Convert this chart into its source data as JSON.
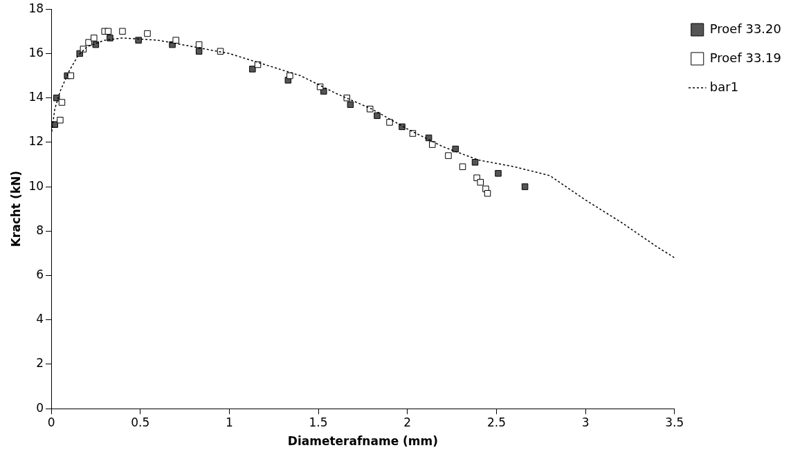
{
  "chart_data": {
    "type": "scatter",
    "xlabel": "Diameterafname (mm)",
    "ylabel": "Kracht (kN)",
    "xlim": [
      0,
      3.5
    ],
    "xticks": [
      0,
      0.5,
      1,
      1.5,
      2,
      2.5,
      3,
      3.5
    ],
    "ylim": [
      0,
      18
    ],
    "yticks": [
      0,
      2,
      4,
      6,
      8,
      10,
      12,
      14,
      16,
      18
    ],
    "grid": false,
    "legend": "top right",
    "marker": "square",
    "series": [
      {
        "name": "Proef 33.20",
        "color": "#555555",
        "x": [
          0.02,
          0.03,
          0.09,
          0.16,
          0.25,
          0.33,
          0.49,
          0.68,
          0.83,
          1.13,
          1.33,
          1.53,
          1.68,
          1.83,
          1.97,
          2.12,
          2.27,
          2.38,
          2.51,
          2.66
        ],
        "values": [
          12.8,
          14.0,
          15.0,
          16.0,
          16.4,
          16.7,
          16.6,
          16.4,
          16.1,
          15.3,
          14.8,
          14.3,
          13.7,
          13.2,
          12.7,
          12.2,
          11.7,
          11.1,
          10.6,
          10.0
        ]
      },
      {
        "name": "Proef 33.19",
        "color": "#ffffff",
        "x": [
          0.05,
          0.06,
          0.11,
          0.18,
          0.21,
          0.24,
          0.3,
          0.32,
          0.4,
          0.54,
          0.7,
          0.83,
          0.95,
          1.16,
          1.34,
          1.51,
          1.66,
          1.79,
          1.9,
          2.03,
          2.14,
          2.23,
          2.31,
          2.39,
          2.41,
          2.44,
          2.45
        ],
        "values": [
          13.0,
          13.8,
          15.0,
          16.2,
          16.5,
          16.7,
          17.0,
          17.0,
          17.0,
          16.9,
          16.6,
          16.4,
          16.1,
          15.5,
          15.0,
          14.5,
          14.0,
          13.5,
          12.9,
          12.4,
          11.9,
          11.4,
          10.9,
          10.4,
          10.2,
          9.9,
          9.7
        ]
      },
      {
        "name": "bar1",
        "type": "line",
        "color": "#000000",
        "line_style": "dashed",
        "marker": "none",
        "x": [
          0,
          0.02,
          0.05,
          0.1,
          0.15,
          0.2,
          0.3,
          0.4,
          0.6,
          0.8,
          1.0,
          1.2,
          1.4,
          1.6,
          1.8,
          2.0,
          2.2,
          2.4,
          2.6,
          2.8,
          3.0,
          3.2,
          3.4,
          3.5
        ],
        "values": [
          12.3,
          13.5,
          14.3,
          15.2,
          15.9,
          16.3,
          16.6,
          16.7,
          16.6,
          16.3,
          16.0,
          15.5,
          15.0,
          14.2,
          13.5,
          12.6,
          11.8,
          11.2,
          10.9,
          10.5,
          9.4,
          8.4,
          7.3,
          6.8
        ]
      }
    ]
  }
}
